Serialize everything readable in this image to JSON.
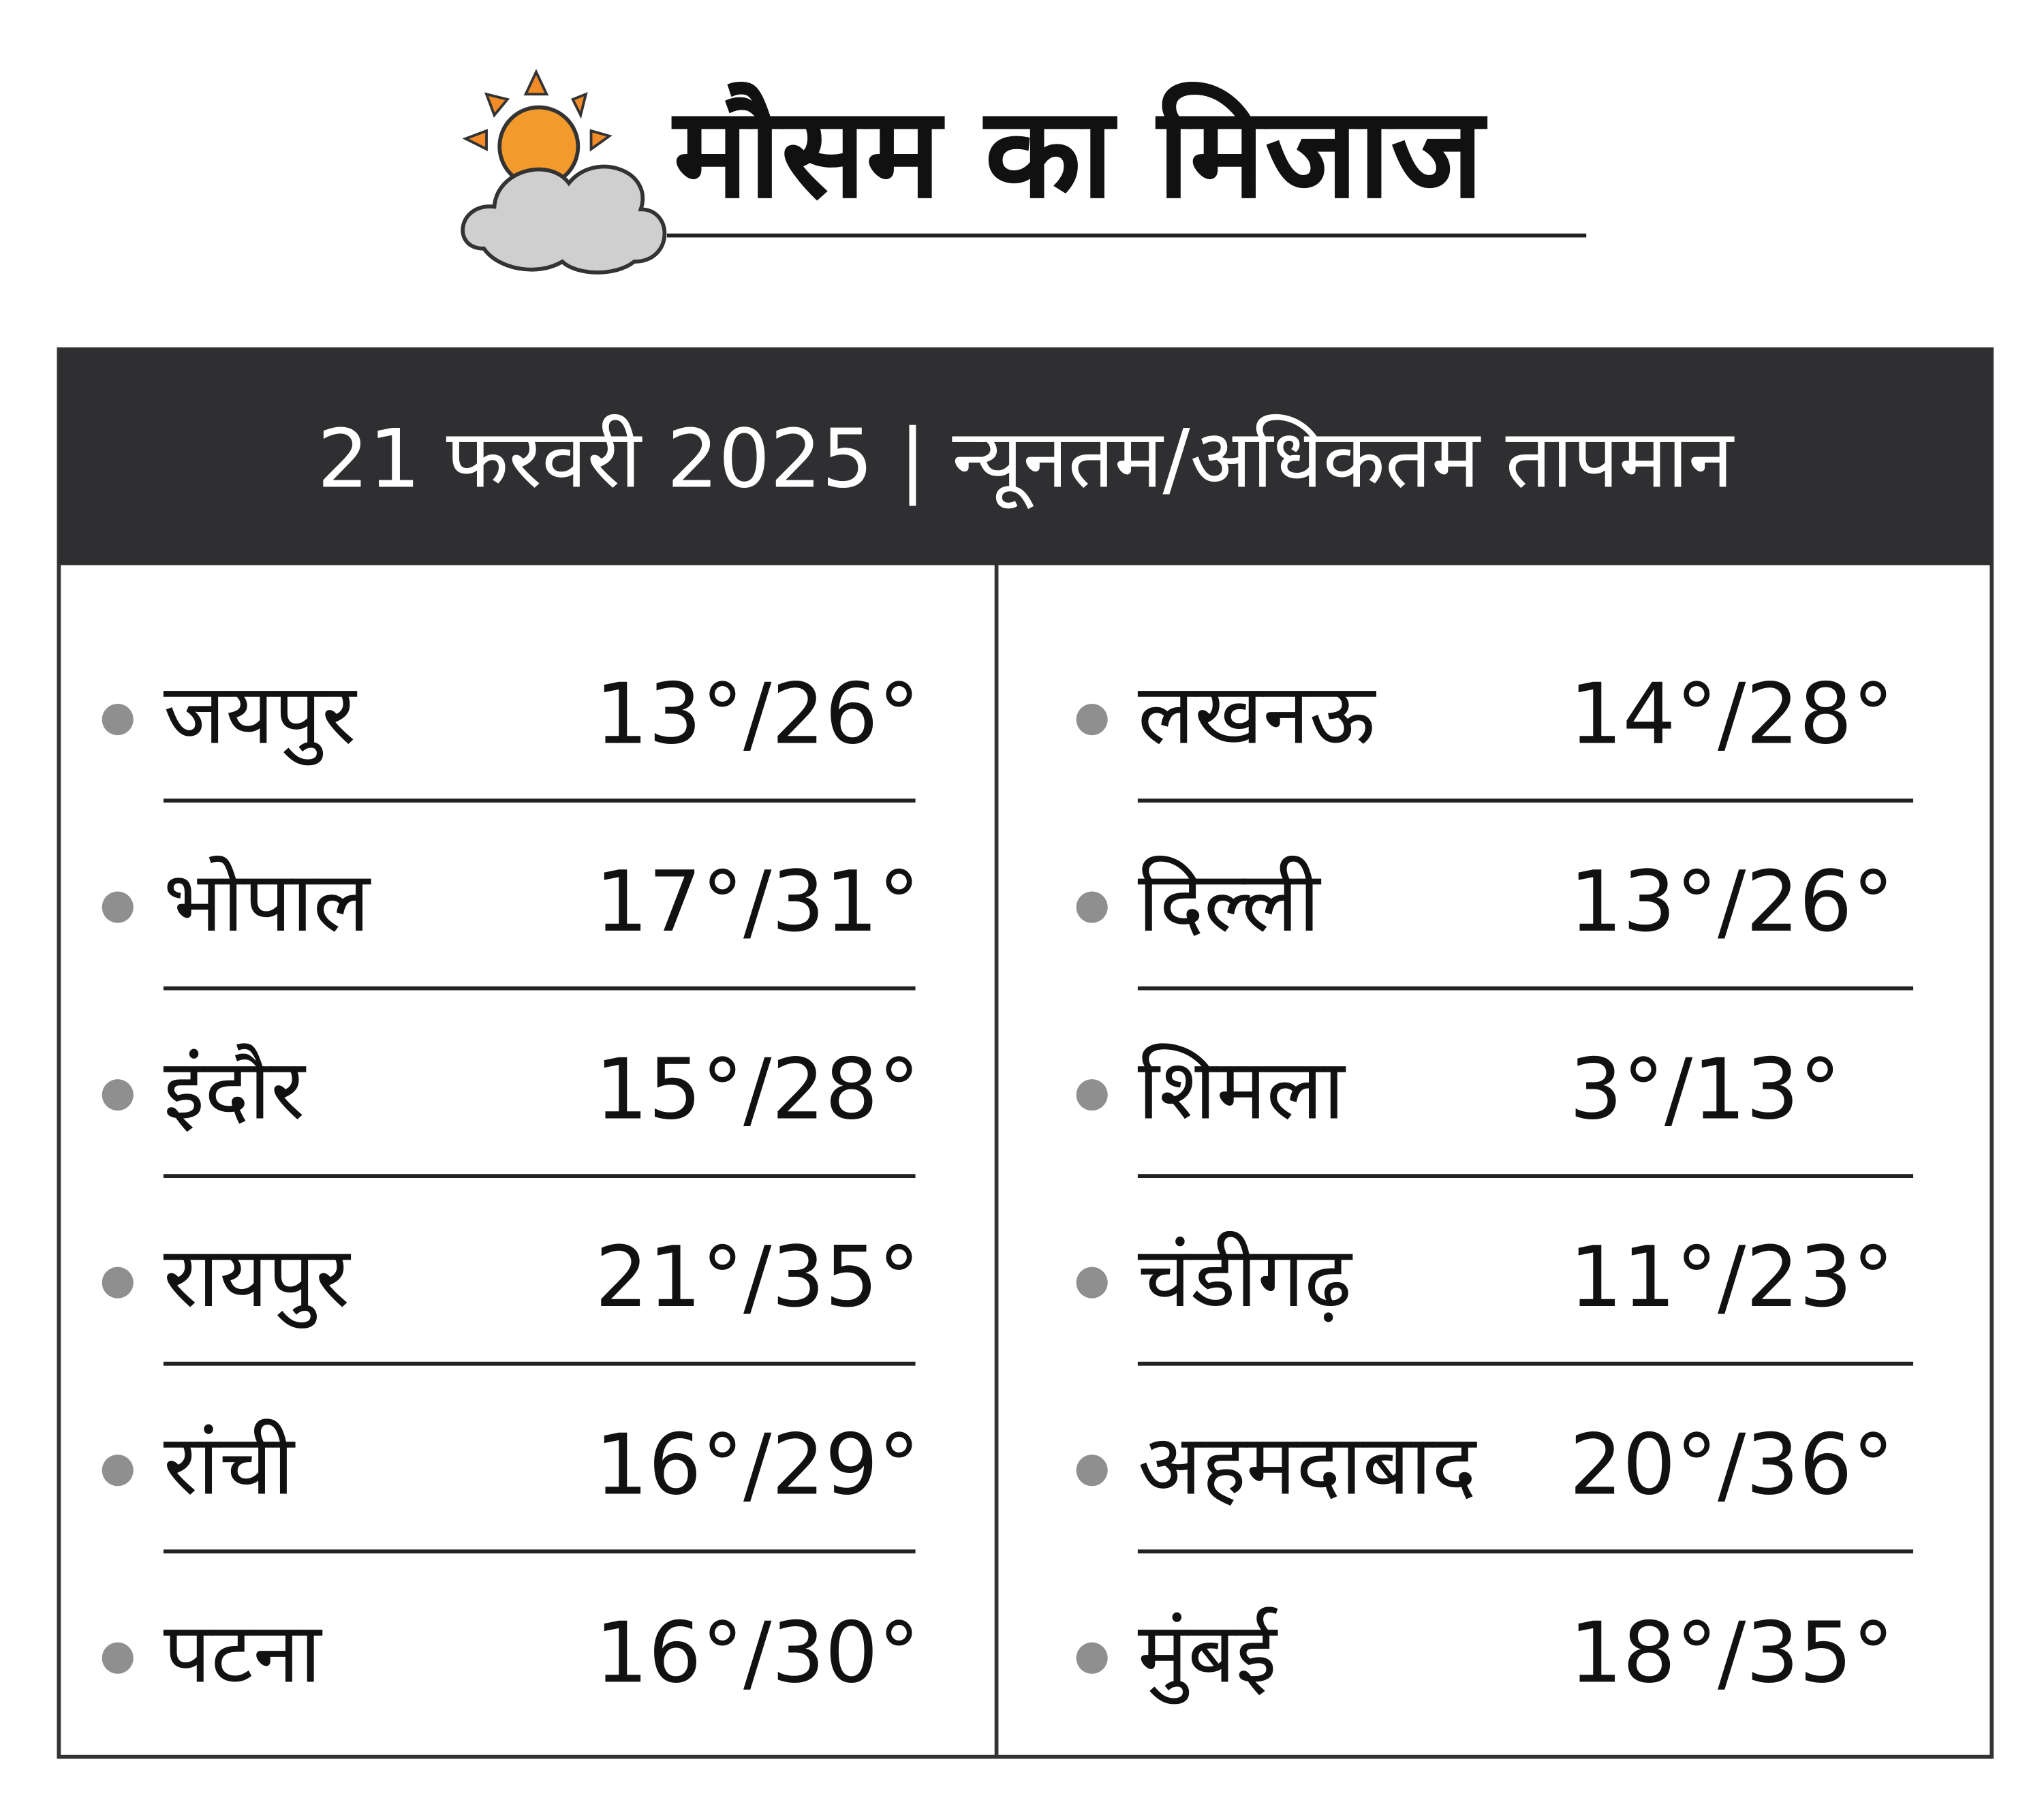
{
  "header": {
    "title": "मौसम का मिजाज"
  },
  "table": {
    "caption": "21 फरवरी 2025 | न्यूनतम/अधिकतम तापमान",
    "columns": [
      [
        {
          "city": "जयपुर",
          "temp": "13°/26°"
        },
        {
          "city": "भोपाल",
          "temp": "17°/31°"
        },
        {
          "city": "इंदौर",
          "temp": "15°/28°"
        },
        {
          "city": "रायपुर",
          "temp": "21°/35°"
        },
        {
          "city": "रांची",
          "temp": "16°/29°"
        },
        {
          "city": "पटना",
          "temp": "16°/30°"
        }
      ],
      [
        {
          "city": "लखनऊ",
          "temp": "14°/28°"
        },
        {
          "city": "दिल्ली",
          "temp": "13°/26°"
        },
        {
          "city": "शिमला",
          "temp": "3°/13°"
        },
        {
          "city": "चंडीगढ़",
          "temp": "11°/23°"
        },
        {
          "city": "अहमदाबाद",
          "temp": "20°/36°"
        },
        {
          "city": "मुंबई",
          "temp": "18°/35°"
        }
      ]
    ]
  }
}
